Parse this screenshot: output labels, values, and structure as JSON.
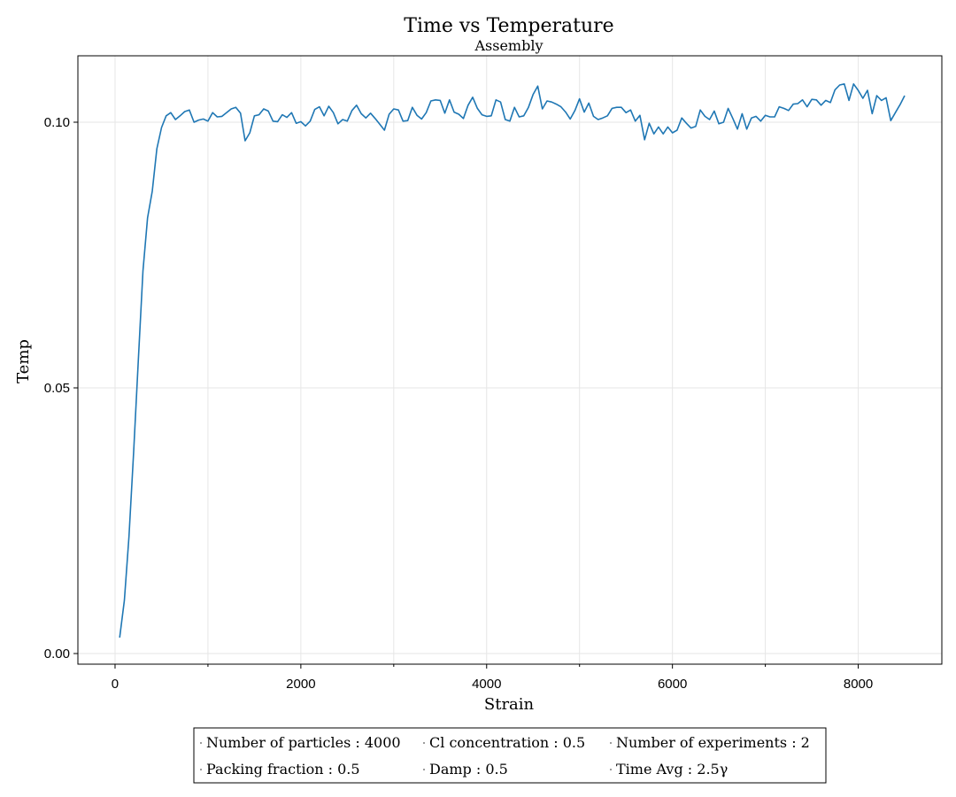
{
  "chart_data": {
    "type": "line",
    "title": "Time vs Temperature",
    "subtitle": "Assembly",
    "xlabel": "Strain",
    "ylabel": "Temp",
    "xlim": [
      -400,
      8900
    ],
    "ylim": [
      -0.002,
      0.1125
    ],
    "xticks": [
      0,
      2000,
      4000,
      6000,
      8000
    ],
    "xtick_labels": [
      "0",
      "2000",
      "4000",
      "6000",
      "8000"
    ],
    "xminor": [
      1000,
      3000,
      5000,
      7000
    ],
    "yticks": [
      0.0,
      0.05,
      0.1
    ],
    "ytick_labels": [
      "0.00",
      "0.05",
      "0.10"
    ],
    "grid": true,
    "series_color": "#1f77b4",
    "series": [
      {
        "x": [
          50,
          100,
          150,
          200,
          250,
          300,
          350,
          400,
          450,
          500,
          550,
          600,
          650,
          700,
          750,
          800,
          850,
          900,
          950,
          1000,
          1050,
          1100,
          1150,
          1200,
          1250,
          1300,
          1350,
          1400,
          1450,
          1500,
          1550,
          1600,
          1650,
          1700,
          1750,
          1800,
          1850,
          1900,
          1950,
          2000,
          2050,
          2100,
          2150,
          2200,
          2250,
          2300,
          2350,
          2400,
          2450,
          2500,
          2550,
          2600,
          2650,
          2700,
          2750,
          2800,
          2850,
          2900,
          2950,
          3000,
          3050,
          3100,
          3150,
          3200,
          3250,
          3300,
          3350,
          3400,
          3450,
          3500,
          3550,
          3600,
          3650,
          3700,
          3750,
          3800,
          3850,
          3900,
          3950,
          4000,
          4050,
          4100,
          4150,
          4200,
          4250,
          4300,
          4350,
          4400,
          4450,
          4500,
          4550,
          4600,
          4650,
          4700,
          4750,
          4800,
          4850,
          4900,
          4950,
          5000,
          5050,
          5100,
          5150,
          5200,
          5250,
          5300,
          5350,
          5400,
          5450,
          5500,
          5550,
          5600,
          5650,
          5700,
          5750,
          5800,
          5850,
          5900,
          5950,
          6000,
          6050,
          6100,
          6150,
          6200,
          6250,
          6300,
          6350,
          6400,
          6450,
          6500,
          6550,
          6600,
          6650,
          6700,
          6750,
          6800,
          6850,
          6900,
          6950,
          7000,
          7050,
          7100,
          7150,
          7200,
          7250,
          7300,
          7350,
          7400,
          7450,
          7500,
          7550,
          7600,
          7650,
          7700,
          7750,
          7800,
          7850,
          7900,
          7950,
          8000,
          8050,
          8100,
          8150,
          8200,
          8250,
          8300,
          8350,
          8400,
          8450,
          8500
        ],
        "y": [
          0.003,
          0.01,
          0.022,
          0.038,
          0.055,
          0.072,
          0.082,
          0.087,
          0.095,
          0.099,
          0.1012,
          0.1018,
          0.1005,
          0.1012,
          0.102,
          0.1023,
          0.1,
          0.1004,
          0.1006,
          0.1002,
          0.1018,
          0.101,
          0.1011,
          0.1018,
          0.1025,
          0.1028,
          0.1017,
          0.0965,
          0.098,
          0.1012,
          0.1014,
          0.1025,
          0.1021,
          0.1002,
          0.1001,
          0.1014,
          0.1009,
          0.1018,
          0.0998,
          0.1001,
          0.0993,
          0.1002,
          0.1024,
          0.1029,
          0.1012,
          0.103,
          0.1018,
          0.0997,
          0.1005,
          0.1002,
          0.1022,
          0.1032,
          0.1016,
          0.1008,
          0.1017,
          0.1007,
          0.0996,
          0.0985,
          0.1015,
          0.1025,
          0.1023,
          0.1002,
          0.1003,
          0.1028,
          0.1013,
          0.1006,
          0.1018,
          0.104,
          0.1042,
          0.1041,
          0.1017,
          0.1042,
          0.1019,
          0.1015,
          0.1007,
          0.1032,
          0.1047,
          0.1026,
          0.1014,
          0.1011,
          0.1012,
          0.1042,
          0.1038,
          0.1005,
          0.1002,
          0.1028,
          0.101,
          0.1012,
          0.1028,
          0.1052,
          0.1068,
          0.1025,
          0.104,
          0.1038,
          0.1034,
          0.1029,
          0.1019,
          0.1006,
          0.1022,
          0.1044,
          0.1019,
          0.1036,
          0.1011,
          0.1005,
          0.1008,
          0.1012,
          0.1026,
          0.1028,
          0.1028,
          0.1018,
          0.1023,
          0.1002,
          0.1013,
          0.0967,
          0.0998,
          0.0978,
          0.0991,
          0.0978,
          0.0991,
          0.098,
          0.0985,
          0.1008,
          0.0998,
          0.0989,
          0.0992,
          0.1023,
          0.1011,
          0.1005,
          0.1021,
          0.0997,
          0.1,
          0.1026,
          0.1007,
          0.0987,
          0.1016,
          0.0987,
          0.1008,
          0.1011,
          0.1002,
          0.1013,
          0.101,
          0.101,
          0.1029,
          0.1026,
          0.1022,
          0.1034,
          0.1035,
          0.1042,
          0.1029,
          0.1043,
          0.1042,
          0.1032,
          0.1041,
          0.1037,
          0.1061,
          0.107,
          0.1072,
          0.1041,
          0.1072,
          0.106,
          0.1045,
          0.106,
          0.1016,
          0.105,
          0.1041,
          0.1046,
          0.1003,
          0.1018,
          0.1033,
          0.105
        ]
      }
    ],
    "legend": {
      "placement": "bottom-center",
      "items": [
        [
          "Number of particles : 4000",
          "Cl concentration : 0.5",
          "Number of experiments : 2"
        ],
        [
          "Packing fraction : 0.5",
          "Damp : 0.5",
          "Time Avg : 2.5γ"
        ]
      ]
    }
  }
}
